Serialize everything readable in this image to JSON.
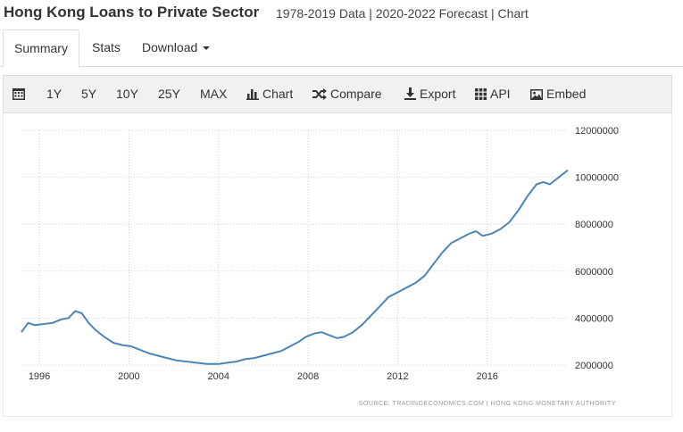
{
  "header": {
    "title": "Hong Kong Loans to Private Sector",
    "subtitle": "1978-2019 Data | 2020-2022 Forecast | Chart"
  },
  "tabs": [
    {
      "label": "Summary",
      "active": true
    },
    {
      "label": "Stats",
      "active": false
    },
    {
      "label": "Download",
      "active": false
    }
  ],
  "toolbar": {
    "ranges": [
      "1Y",
      "5Y",
      "10Y",
      "25Y",
      "MAX"
    ],
    "chart_label": "Chart",
    "compare_label": "Compare",
    "export_label": "Export",
    "api_label": "API",
    "embed_label": "Embed"
  },
  "chart_data": {
    "type": "line",
    "title": "Hong Kong Loans to Private Sector",
    "xlabel": "",
    "ylabel": "",
    "x_ticks": [
      "1996",
      "2000",
      "2004",
      "2008",
      "2012",
      "2016"
    ],
    "y_ticks": [
      "2000000",
      "4000000",
      "6000000",
      "8000000",
      "10000000",
      "12000000"
    ],
    "xlim": [
      1995.2,
      2019.6
    ],
    "ylim": [
      2000000,
      12000000
    ],
    "grid": true,
    "line_color": "#4d85b4",
    "series": [
      {
        "name": "Loans to Private Sector",
        "x": [
          1995.2,
          1995.5,
          1995.8,
          1996.2,
          1996.6,
          1997.0,
          1997.3,
          1997.6,
          1997.9,
          1998.2,
          1998.5,
          1998.9,
          1999.3,
          1999.7,
          2000.1,
          2000.5,
          2000.9,
          2001.3,
          2001.7,
          2002.1,
          2002.6,
          2003.0,
          2003.5,
          2004.0,
          2004.4,
          2004.8,
          2005.2,
          2005.6,
          2006.0,
          2006.4,
          2006.8,
          2007.2,
          2007.6,
          2007.9,
          2008.3,
          2008.6,
          2009.0,
          2009.3,
          2009.6,
          2010.0,
          2010.4,
          2010.8,
          2011.2,
          2011.6,
          2012.0,
          2012.4,
          2012.8,
          2013.2,
          2013.6,
          2014.0,
          2014.4,
          2014.8,
          2015.2,
          2015.5,
          2015.8,
          2016.2,
          2016.6,
          2017.0,
          2017.4,
          2017.8,
          2018.2,
          2018.5,
          2018.8,
          2019.2,
          2019.6
        ],
        "values": [
          3400000,
          3800000,
          3700000,
          3750000,
          3800000,
          3950000,
          4000000,
          4300000,
          4200000,
          3800000,
          3500000,
          3200000,
          2950000,
          2850000,
          2800000,
          2650000,
          2500000,
          2400000,
          2300000,
          2200000,
          2150000,
          2100000,
          2050000,
          2050000,
          2100000,
          2150000,
          2250000,
          2300000,
          2400000,
          2500000,
          2600000,
          2800000,
          3000000,
          3200000,
          3350000,
          3400000,
          3250000,
          3150000,
          3200000,
          3400000,
          3700000,
          4100000,
          4500000,
          4900000,
          5100000,
          5300000,
          5500000,
          5800000,
          6300000,
          6800000,
          7200000,
          7400000,
          7600000,
          7700000,
          7500000,
          7600000,
          7800000,
          8100000,
          8600000,
          9200000,
          9700000,
          9800000,
          9700000,
          10000000,
          10300000
        ]
      }
    ],
    "source": "SOURCE: TRADINGECONOMICS.COM  |  HONG KONG MONETARY AUTHORITY"
  }
}
